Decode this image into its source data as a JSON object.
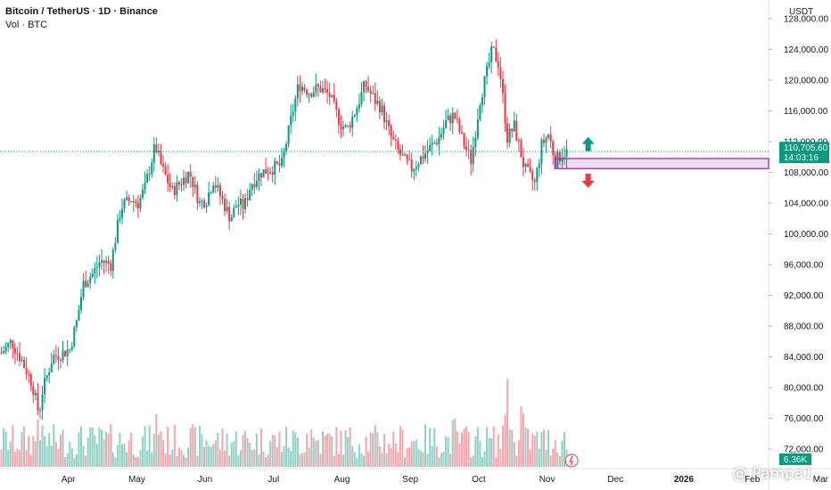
{
  "header": {
    "title": "Bitcoin / TetherUS · 1D · Binance",
    "volume_label": "Vol · BTC"
  },
  "price_axis": {
    "unit": "USDT"
  },
  "last_price": {
    "value": "110,705.60",
    "countdown": "14:03:16",
    "color": "#089981"
  },
  "volume_last": {
    "value": "6.36K",
    "color": "#089981"
  },
  "watermark": "@ Pampa1",
  "colors": {
    "up": "#089981",
    "down": "#f23645",
    "zone": "#9c27b0"
  },
  "chart_data": {
    "type": "candlestick",
    "ylim": [
      70000,
      130000
    ],
    "yticks": [
      72000,
      76000,
      80000,
      84000,
      88000,
      92000,
      96000,
      100000,
      104000,
      108000,
      112000,
      116000,
      120000,
      124000,
      128000
    ],
    "ytick_labels": [
      "72,000.00",
      "76,000.00",
      "80,000.00",
      "84,000.00",
      "88,000.00",
      "92,000.00",
      "96,000.00",
      "100,000.00",
      "104,000.00",
      "108,000.00",
      "112,000.00",
      "116,000.00",
      "120,000.00",
      "124,000.00",
      "128,000.00"
    ],
    "x_labels": [
      {
        "label": "Apr",
        "month": 1
      },
      {
        "label": "May",
        "month": 2
      },
      {
        "label": "Jun",
        "month": 3
      },
      {
        "label": "Jul",
        "month": 4
      },
      {
        "label": "Aug",
        "month": 5
      },
      {
        "label": "Sep",
        "month": 6
      },
      {
        "label": "Oct",
        "month": 7
      },
      {
        "label": "Nov",
        "month": 8
      },
      {
        "label": "Dec",
        "month": 9
      },
      {
        "label": "2026",
        "month": 10,
        "bold": true
      },
      {
        "label": "Feb",
        "month": 11
      },
      {
        "label": "Mar",
        "month": 12
      }
    ],
    "price_path": [
      [
        0,
        84500
      ],
      [
        0.15,
        86000
      ],
      [
        0.3,
        83500
      ],
      [
        0.45,
        80500
      ],
      [
        0.55,
        76500
      ],
      [
        0.6,
        79500
      ],
      [
        0.75,
        84000
      ],
      [
        0.9,
        84500
      ],
      [
        1.0,
        85000
      ],
      [
        1.1,
        88500
      ],
      [
        1.2,
        93500
      ],
      [
        1.35,
        95000
      ],
      [
        1.45,
        96500
      ],
      [
        1.6,
        96000
      ],
      [
        1.75,
        103500
      ],
      [
        1.9,
        104500
      ],
      [
        2.0,
        104000
      ],
      [
        2.1,
        106000
      ],
      [
        2.25,
        111500
      ],
      [
        2.35,
        108500
      ],
      [
        2.5,
        105500
      ],
      [
        2.6,
        106500
      ],
      [
        2.75,
        108000
      ],
      [
        2.9,
        104000
      ],
      [
        3.0,
        104500
      ],
      [
        3.1,
        107000
      ],
      [
        3.2,
        105000
      ],
      [
        3.35,
        102000
      ],
      [
        3.45,
        104000
      ],
      [
        3.55,
        103500
      ],
      [
        3.65,
        106500
      ],
      [
        3.8,
        108000
      ],
      [
        3.95,
        108500
      ],
      [
        4.1,
        109000
      ],
      [
        4.25,
        115500
      ],
      [
        4.35,
        119500
      ],
      [
        4.5,
        118500
      ],
      [
        4.65,
        119000
      ],
      [
        4.8,
        118000
      ],
      [
        4.95,
        114500
      ],
      [
        5.05,
        113500
      ],
      [
        5.2,
        116500
      ],
      [
        5.32,
        119500
      ],
      [
        5.45,
        117500
      ],
      [
        5.55,
        116500
      ],
      [
        5.7,
        112500
      ],
      [
        5.85,
        110000
      ],
      [
        6.0,
        108500
      ],
      [
        6.1,
        109500
      ],
      [
        6.25,
        111000
      ],
      [
        6.4,
        112500
      ],
      [
        6.5,
        114500
      ],
      [
        6.62,
        115500
      ],
      [
        6.75,
        112000
      ],
      [
        6.87,
        109500
      ],
      [
        7.0,
        117500
      ],
      [
        7.1,
        121000
      ],
      [
        7.18,
        124000
      ],
      [
        7.28,
        122000
      ],
      [
        7.4,
        112500
      ],
      [
        7.5,
        114000
      ],
      [
        7.65,
        108500
      ],
      [
        7.8,
        106500
      ],
      [
        7.9,
        111500
      ],
      [
        8.0,
        113000
      ],
      [
        8.1,
        109500
      ],
      [
        8.2,
        110400
      ],
      [
        8.28,
        110705.6
      ]
    ],
    "volume_events": [
      {
        "x": 0.55,
        "mult": 2.0
      },
      {
        "x": 2.3,
        "mult": 1.6
      },
      {
        "x": 4.5,
        "mult": 1.3
      },
      {
        "x": 6.62,
        "mult": 1.2
      },
      {
        "x": 7.4,
        "mult": 3.2
      },
      {
        "x": 7.6,
        "mult": 1.9
      }
    ],
    "zone": {
      "y_top": 109800,
      "y_bottom": 108500,
      "x_start": 8.1,
      "x_end": 12.0
    },
    "arrows": [
      {
        "direction": "up",
        "x": 8.6,
        "y": 111700
      },
      {
        "direction": "down",
        "x": 8.6,
        "y": 106900
      }
    ],
    "last_price_line": 110705.6
  }
}
